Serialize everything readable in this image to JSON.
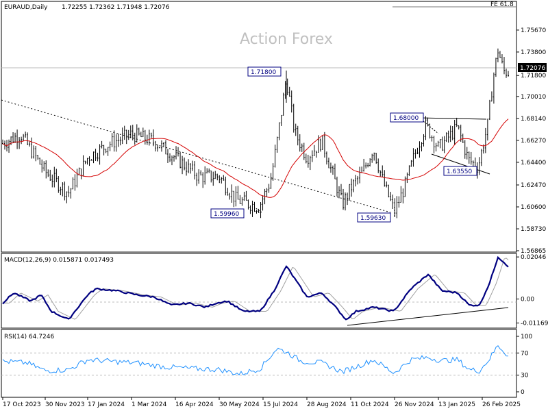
{
  "header": {
    "symbol": "EURAUD,Daily",
    "ohlc": "1.72255 1.72362 1.71948 1.72076",
    "fib_label": "FE 61.8",
    "watermark": "Action Forex"
  },
  "chart_data": [
    {
      "type": "candlestick",
      "title": "EURAUD,Daily",
      "ylim": [
        1.56865,
        1.78
      ],
      "y_ticks": [
        "1.75670",
        "1.73800",
        "1.71800",
        "1.70010",
        "1.68140",
        "1.66270",
        "1.64400",
        "1.62470",
        "1.60600",
        "1.58730",
        "1.56865"
      ],
      "last_price": "1.72076",
      "x_labels": [
        "17 Oct 2023",
        "30 Nov 2023",
        "17 Jan 2024",
        "1 Mar 2024",
        "16 Apr 2024",
        "30 May 2024",
        "15 Jul 2024",
        "28 Aug 2024",
        "11 Oct 2024",
        "26 Nov 2024",
        "13 Jan 2025",
        "26 Feb 2025"
      ],
      "price_labels": [
        "1.71800",
        "1.68000",
        "1.63550",
        "1.59960",
        "1.59630"
      ],
      "close_path": [
        [
          "17 Oct 2023",
          1.66
        ],
        [
          "30 Nov 2023",
          1.625
        ],
        [
          "17 Jan 2024",
          1.65
        ],
        [
          "1 Mar 2024",
          1.665
        ],
        [
          "16 Apr 2024",
          1.64
        ],
        [
          "30 May 2024",
          1.6
        ],
        [
          "15 Jul 2024",
          1.718
        ],
        [
          "28 Aug 2024",
          1.64
        ],
        [
          "11 Oct 2024",
          1.65
        ],
        [
          "26 Nov 2024",
          1.596
        ],
        [
          "13 Jan 2025",
          1.68
        ],
        [
          "26 Feb 2025",
          1.636
        ],
        [
          "26 Feb 2025",
          1.744
        ],
        [
          "26 Feb 2025",
          1.7208
        ]
      ],
      "moving_average": true
    },
    {
      "type": "line",
      "title": "MACD(12,26,9) 0.015871 0.017493",
      "y_ticks": [
        "0.02046",
        "0.00",
        "-0.011697"
      ],
      "ylim": [
        -0.0135,
        0.0215
      ]
    },
    {
      "type": "line",
      "title": "RSI(14) 64.7246",
      "y_ticks": [
        "100",
        "70",
        "30",
        "0"
      ],
      "ylim": [
        0,
        100
      ],
      "levels": [
        70,
        30
      ]
    }
  ]
}
